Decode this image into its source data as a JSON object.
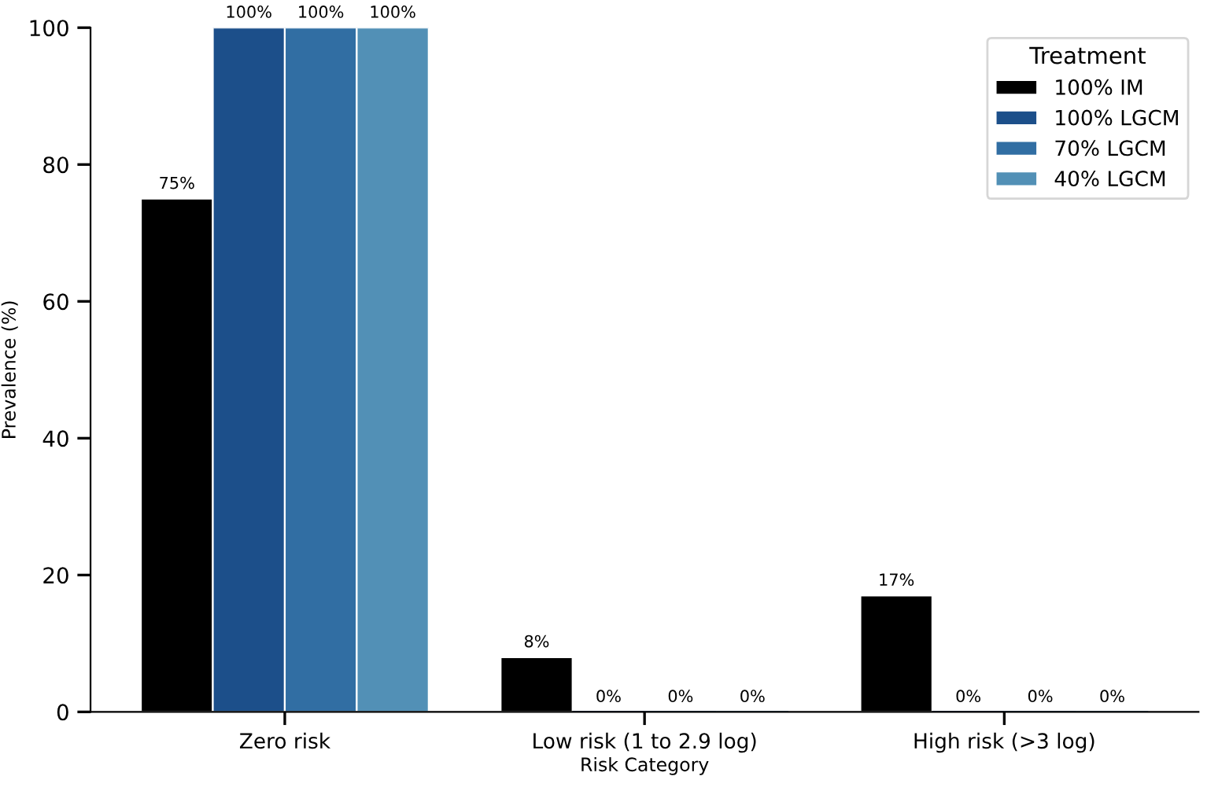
{
  "chart_data": {
    "type": "bar",
    "xlabel": "Risk Category",
    "ylabel": "Prevalence (%)",
    "legend_title": "Treatment",
    "categories": [
      "Zero risk",
      "Low risk (1 to 2.9 log)",
      "High risk (>3 log)"
    ],
    "series": [
      {
        "name": "100% IM",
        "color": "#000000",
        "values": [
          75,
          8,
          17
        ],
        "value_labels": [
          "75%",
          "8%",
          "17%"
        ]
      },
      {
        "name": "100% LGCM",
        "color": "#1c4f8a",
        "values": [
          100,
          0,
          0
        ],
        "value_labels": [
          "100%",
          "0%",
          "0%"
        ]
      },
      {
        "name": "70% LGCM",
        "color": "#316ea3",
        "values": [
          100,
          0,
          0
        ],
        "value_labels": [
          "100%",
          "0%",
          "0%"
        ]
      },
      {
        "name": "40% LGCM",
        "color": "#5290b6",
        "values": [
          100,
          0,
          0
        ],
        "value_labels": [
          "100%",
          "0%",
          "0%"
        ]
      }
    ],
    "ylim": [
      0,
      100
    ],
    "yticks": [
      0,
      20,
      40,
      60,
      80,
      100
    ],
    "grid": false,
    "legend": "top right"
  }
}
